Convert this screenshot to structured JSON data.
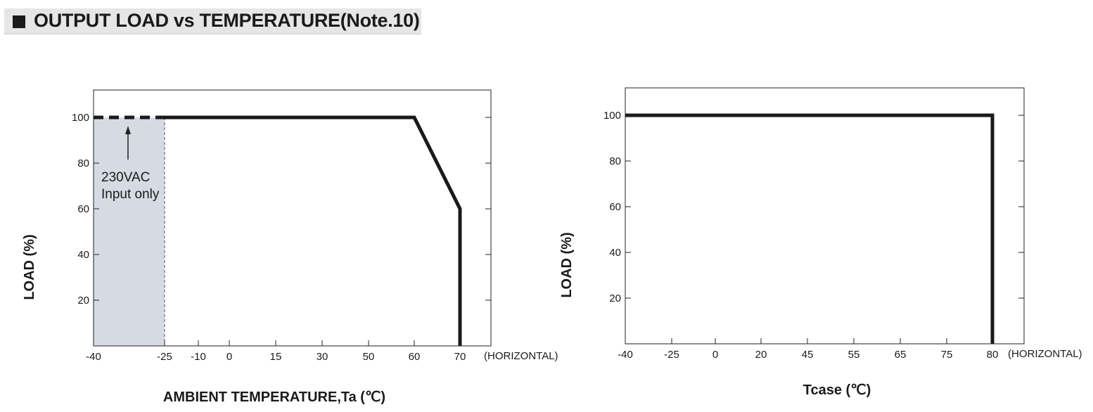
{
  "header": {
    "title": "OUTPUT LOAD vs TEMPERATURE(Note.10)"
  },
  "chart_data": [
    {
      "type": "line",
      "title": "",
      "xlabel": "AMBIENT TEMPERATURE,Ta (℃)",
      "ylabel": "LOAD (%)",
      "x_ticks": [
        "-40",
        "-25",
        "-10",
        "0",
        "15",
        "30",
        "50",
        "60",
        "70"
      ],
      "y_ticks": [
        "100",
        "80",
        "60",
        "40",
        "20"
      ],
      "ylim": [
        0,
        112
      ],
      "orientation_label": "(HORIZONTAL)",
      "series": [
        {
          "style": "dashed",
          "points": [
            [
              -40,
              100
            ],
            [
              -25,
              100
            ]
          ]
        },
        {
          "style": "solid",
          "points": [
            [
              -25,
              100
            ],
            [
              60,
              100
            ],
            [
              70,
              60
            ],
            [
              70,
              0
            ]
          ]
        }
      ],
      "shaded_region": {
        "x": [
          -40,
          -25
        ],
        "color": "#d5dbe2"
      },
      "annotation": {
        "line1": "230VAC",
        "line2": "Input only",
        "arrow_to": [
          -25,
          100
        ]
      },
      "grid": false
    },
    {
      "type": "line",
      "title": "",
      "xlabel": "Tcase (℃)",
      "ylabel": "LOAD (%)",
      "x_ticks": [
        "-40",
        "-25",
        "0",
        "20",
        "45",
        "55",
        "65",
        "75",
        "80"
      ],
      "y_ticks": [
        "100",
        "80",
        "60",
        "40",
        "20"
      ],
      "ylim": [
        0,
        112
      ],
      "orientation_label": "(HORIZONTAL)",
      "series": [
        {
          "style": "solid",
          "points": [
            [
              -40,
              100
            ],
            [
              80,
              100
            ],
            [
              80,
              0
            ]
          ]
        }
      ],
      "grid": false
    }
  ]
}
